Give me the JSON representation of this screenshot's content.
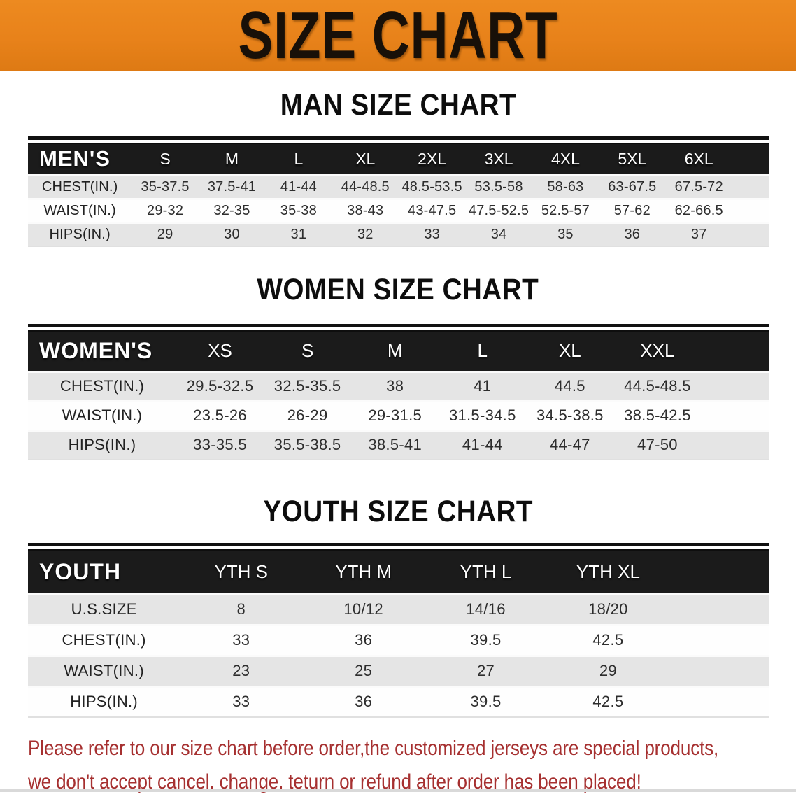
{
  "banner": {
    "title": "SIZE CHART"
  },
  "sections": [
    {
      "heading": "MAN SIZE CHART",
      "table": {
        "label": "MEN'S",
        "columns": [
          "S",
          "M",
          "L",
          "XL",
          "2XL",
          "3XL",
          "4XL",
          "5XL",
          "6XL"
        ],
        "rows": [
          {
            "label": "CHEST(IN.)",
            "values": [
              "35-37.5",
              "37.5-41",
              "41-44",
              "44-48.5",
              "48.5-53.5",
              "53.5-58",
              "58-63",
              "63-67.5",
              "67.5-72"
            ]
          },
          {
            "label": "WAIST(IN.)",
            "values": [
              "29-32",
              "32-35",
              "35-38",
              "38-43",
              "43-47.5",
              "47.5-52.5",
              "52.5-57",
              "57-62",
              "62-66.5"
            ]
          },
          {
            "label": "HIPS(IN.)",
            "values": [
              "29",
              "30",
              "31",
              "32",
              "33",
              "34",
              "35",
              "36",
              "37"
            ]
          }
        ]
      }
    },
    {
      "heading": "WOMEN SIZE CHART",
      "table": {
        "label": "WOMEN'S",
        "columns": [
          "XS",
          "S",
          "M",
          "L",
          "XL",
          "XXL"
        ],
        "rows": [
          {
            "label": "CHEST(IN.)",
            "values": [
              "29.5-32.5",
              "32.5-35.5",
              "38",
              "41",
              "44.5",
              "44.5-48.5"
            ]
          },
          {
            "label": "WAIST(IN.)",
            "values": [
              "23.5-26",
              "26-29",
              "29-31.5",
              "31.5-34.5",
              "34.5-38.5",
              "38.5-42.5"
            ]
          },
          {
            "label": "HIPS(IN.)",
            "values": [
              "33-35.5",
              "35.5-38.5",
              "38.5-41",
              "41-44",
              "44-47",
              "47-50"
            ]
          }
        ]
      }
    },
    {
      "heading": "YOUTH SIZE CHART",
      "table": {
        "label": "YOUTH",
        "columns": [
          "YTH S",
          "YTH M",
          "YTH L",
          "YTH XL"
        ],
        "rows": [
          {
            "label": "U.S.SIZE",
            "values": [
              "8",
              "10/12",
              "14/16",
              "18/20"
            ]
          },
          {
            "label": "CHEST(IN.)",
            "values": [
              "33",
              "36",
              "39.5",
              "42.5"
            ]
          },
          {
            "label": "WAIST(IN.)",
            "values": [
              "23",
              "25",
              "27",
              "29"
            ]
          },
          {
            "label": "HIPS(IN.)",
            "values": [
              "33",
              "36",
              "39.5",
              "42.5"
            ]
          }
        ]
      }
    }
  ],
  "footer": {
    "line1": "Please refer to our size chart before order,the customized jerseys are special products,",
    "line2": "we don't accept cancel, change, teturn or refund after order has been placed!"
  },
  "colors": {
    "banner_bg": "#E8821A",
    "table_header_bg": "#1B1B1B",
    "row_shade": "#E5E5E5",
    "footer_text": "#A63030"
  }
}
